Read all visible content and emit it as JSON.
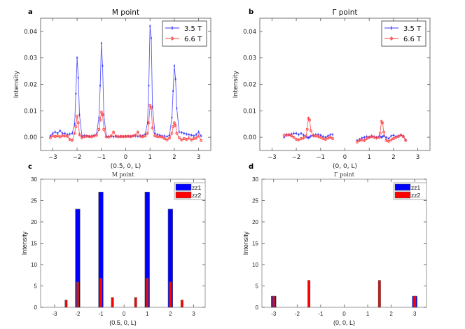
{
  "chart_data": [
    {
      "panel": "a",
      "type": "line",
      "title": "M point",
      "xlabel": "(0.5, 0, L)",
      "ylabel": "Intensity",
      "xlim": [
        -3.5,
        3.5
      ],
      "ylim": [
        -0.005,
        0.045
      ],
      "xticks": [
        "−3",
        "−2",
        "−1",
        "0",
        "1",
        "2",
        "3"
      ],
      "xtick_values": [
        -3,
        -2,
        -1,
        0,
        1,
        2,
        3
      ],
      "yticks": [
        "0.00",
        "0.01",
        "0.02",
        "0.03",
        "0.04"
      ],
      "ytick_values": [
        0,
        0.01,
        0.02,
        0.03,
        0.04
      ],
      "legend_position": "top-right",
      "error_bars": true,
      "x": [
        -3.1,
        -3.0,
        -2.9,
        -2.8,
        -2.7,
        -2.6,
        -2.5,
        -2.4,
        -2.3,
        -2.2,
        -2.1,
        -2.05,
        -2.0,
        -1.95,
        -1.9,
        -1.8,
        -1.7,
        -1.6,
        -1.5,
        -1.4,
        -1.3,
        -1.2,
        -1.1,
        -1.05,
        -1.0,
        -0.95,
        -0.9,
        -0.8,
        -0.7,
        -0.6,
        -0.5,
        -0.4,
        -0.3,
        -0.2,
        -0.1,
        0,
        0.1,
        0.2,
        0.3,
        0.4,
        0.5,
        0.6,
        0.7,
        0.8,
        0.9,
        0.95,
        1.0,
        1.05,
        1.1,
        1.2,
        1.3,
        1.4,
        1.5,
        1.6,
        1.7,
        1.8,
        1.9,
        1.95,
        2.0,
        2.05,
        2.1,
        2.2,
        2.3,
        2.4,
        2.5,
        2.6,
        2.7,
        2.8,
        2.9,
        3.0,
        3.1
      ],
      "series": [
        {
          "name": "3.5 T",
          "color": "#3a3aff",
          "values": [
            0.0005,
            0.0015,
            0.002,
            0.0015,
            0.0025,
            0.0015,
            0.0015,
            0.001,
            0.0012,
            0.0015,
            0.005,
            0.0165,
            0.03,
            0.0225,
            0.0085,
            0.0005,
            0.0007,
            0.0005,
            0.0003,
            0.0005,
            0.0007,
            0.0012,
            0.0075,
            0.0195,
            0.0355,
            0.027,
            0.0085,
            0.0005,
            0.0003,
            0.0003,
            0.0002,
            0.0003,
            0.0004,
            0.0004,
            0.0003,
            0.0004,
            0.0004,
            0.0003,
            0.0005,
            0.0005,
            0.0004,
            0.0005,
            0.0006,
            0.0012,
            0.0055,
            0.0195,
            0.042,
            0.0375,
            0.0115,
            0.0015,
            0.001,
            0.0008,
            0.0005,
            0.0005,
            0.0003,
            0.0008,
            0.0075,
            0.0175,
            0.027,
            0.022,
            0.011,
            0.002,
            0.0018,
            0.0015,
            0.0012,
            0.001,
            0.0008,
            0.0005,
            0.001,
            0.002,
            0.0005
          ]
        },
        {
          "name": "6.6 T",
          "color": "#ff4040",
          "values": [
            -0.0002,
            0.0005,
            0.0003,
            0.0005,
            0.0002,
            0.0006,
            0.0005,
            0.0004,
            -0.0008,
            -0.0012,
            0.0015,
            0.004,
            0.008,
            0.0055,
            0.001,
            -0.0002,
            0.0003,
            0.0004,
            0.0003,
            0.0002,
            0.0005,
            0.0008,
            0.003,
            0.0065,
            0.0095,
            0.0085,
            0.003,
            0.0002,
            0.0001,
            0.0005,
            0.002,
            0.0004,
            0.0002,
            0.0003,
            0.0003,
            0.0003,
            0.0004,
            0.0003,
            0.0005,
            0.0008,
            0.002,
            0.0004,
            0.0002,
            0.0005,
            0.0015,
            0.0055,
            0.012,
            0.011,
            0.0035,
            0.0005,
            0.0003,
            0.0002,
            0.0001,
            -0.0005,
            -0.001,
            -0.0003,
            0.0015,
            0.004,
            0.0055,
            0.0045,
            0.0015,
            -0.0002,
            -0.001,
            -0.0005,
            -0.0008,
            -0.0003,
            -0.001,
            -0.0005,
            -0.0003,
            0.0005,
            -0.0012
          ]
        }
      ]
    },
    {
      "panel": "b",
      "type": "line",
      "title": "Γ point",
      "xlabel": "(0, 0, L)",
      "ylabel": "Intensity",
      "xlim": [
        -3.5,
        3.5
      ],
      "ylim": [
        -0.005,
        0.045
      ],
      "xticks": [
        "−3",
        "−2",
        "−1",
        "0",
        "1",
        "2",
        "3"
      ],
      "xtick_values": [
        -3,
        -2,
        -1,
        0,
        1,
        2,
        3
      ],
      "yticks": [
        "0.00",
        "0.01",
        "0.02",
        "0.03",
        "0.04"
      ],
      "ytick_values": [
        0,
        0.01,
        0.02,
        0.03,
        0.04
      ],
      "legend_position": "top-right",
      "error_bars": true,
      "x": [
        -2.5,
        -2.4,
        -2.3,
        -2.2,
        -2.1,
        -2.0,
        -1.9,
        -1.8,
        -1.7,
        -1.6,
        -1.55,
        -1.5,
        -1.45,
        -1.4,
        -1.3,
        -1.2,
        -1.1,
        -1.0,
        -0.9,
        -0.8,
        -0.7,
        -0.6,
        -0.5,
        null,
        0.5,
        0.6,
        0.7,
        0.8,
        0.9,
        1.0,
        1.1,
        1.2,
        1.3,
        1.4,
        1.45,
        1.5,
        1.55,
        1.6,
        1.7,
        1.8,
        1.9,
        2.0,
        2.1,
        2.2,
        2.3,
        2.4,
        2.5
      ],
      "series": [
        {
          "name": "3.5 T",
          "color": "#3a3aff",
          "values": [
            0.0,
            0.001,
            0.0008,
            0.0012,
            0.0015,
            0.0015,
            0.001,
            0.0015,
            0.0008,
            0.0002,
            0.0,
            -0.0002,
            0.0,
            0.0005,
            0.0008,
            0.001,
            0.001,
            0.0008,
            0.0003,
            0.0,
            0.0005,
            0.001,
            0.001,
            null,
            -0.0012,
            -0.0008,
            -0.0003,
            0.0,
            0.0002,
            0.0,
            0.0005,
            0.0003,
            0.0,
            0.0003,
            0.0002,
            0.0,
            0.0003,
            0.0005,
            0.0,
            -0.0005,
            0.0005,
            0.0008,
            0.0003,
            0.0005,
            0.0008,
            0.0005,
            -0.001
          ]
        },
        {
          "name": "6.6 T",
          "color": "#ff4040",
          "values": [
            0.0008,
            0.0008,
            0.001,
            0.0005,
            0.0,
            -0.0008,
            -0.001,
            -0.0005,
            -0.0003,
            0.0005,
            0.003,
            0.0072,
            0.0065,
            0.0025,
            0.0005,
            0.0005,
            0.0003,
            0.0,
            -0.0005,
            -0.0008,
            -0.0003,
            0.0,
            -0.0005,
            null,
            -0.0018,
            -0.0012,
            -0.001,
            -0.0012,
            -0.0005,
            0.0,
            0.0003,
            0.0,
            -0.0003,
            0.0,
            0.0015,
            0.006,
            0.0055,
            0.002,
            -0.0012,
            -0.0015,
            -0.001,
            -0.0005,
            0.0,
            0.0003,
            0.0008,
            0.0003,
            -0.0012
          ]
        }
      ]
    },
    {
      "panel": "c",
      "type": "bar",
      "title": "M point",
      "xlabel": "(0.5, 0, L)",
      "ylabel": "Intensity",
      "xlim": [
        -3.6,
        3.5
      ],
      "ylim": [
        0,
        30
      ],
      "xticks": [
        "-3",
        "-2",
        "-1",
        "0",
        "1",
        "2",
        "3"
      ],
      "xtick_values": [
        -3,
        -2,
        -1,
        0,
        1,
        2,
        3
      ],
      "yticks": [
        "0",
        "5",
        "10",
        "15",
        "20",
        "25",
        "30"
      ],
      "ytick_values": [
        0,
        5,
        10,
        15,
        20,
        25,
        30
      ],
      "legend_position": "top-right",
      "series": [
        {
          "name": "zz1",
          "color": "#0000ff",
          "x": [
            -2,
            -1,
            1,
            2
          ],
          "values": [
            23,
            27,
            27,
            23
          ]
        },
        {
          "name": "zz2",
          "color": "#ff0000",
          "x": [
            -2.5,
            -2,
            -1,
            -0.5,
            0.5,
            1,
            2,
            2.5
          ],
          "values": [
            1.7,
            5.9,
            6.8,
            2.3,
            2.3,
            6.8,
            5.9,
            1.7
          ]
        }
      ]
    },
    {
      "panel": "d",
      "type": "bar",
      "title": "Γ point",
      "xlabel": "(0, 0, L)",
      "ylabel": "Intensity",
      "xlim": [
        -3.5,
        3.5
      ],
      "ylim": [
        0,
        30
      ],
      "xticks": [
        "-3",
        "-2",
        "-1",
        "0",
        "1",
        "2",
        "3"
      ],
      "xtick_values": [
        -3,
        -2,
        -1,
        0,
        1,
        2,
        3
      ],
      "yticks": [
        "0",
        "5",
        "10",
        "15",
        "20",
        "25",
        "30"
      ],
      "ytick_values": [
        0,
        5,
        10,
        15,
        20,
        25,
        30
      ],
      "legend_position": "top-right",
      "series": [
        {
          "name": "zz1",
          "color": "#0000ff",
          "x": [
            -3,
            3
          ],
          "values": [
            2.6,
            2.6
          ]
        },
        {
          "name": "zz2",
          "color": "#ff0000",
          "x": [
            -3,
            -1.5,
            1.5,
            3
          ],
          "values": [
            2.6,
            6.3,
            6.3,
            2.6
          ]
        }
      ]
    }
  ]
}
